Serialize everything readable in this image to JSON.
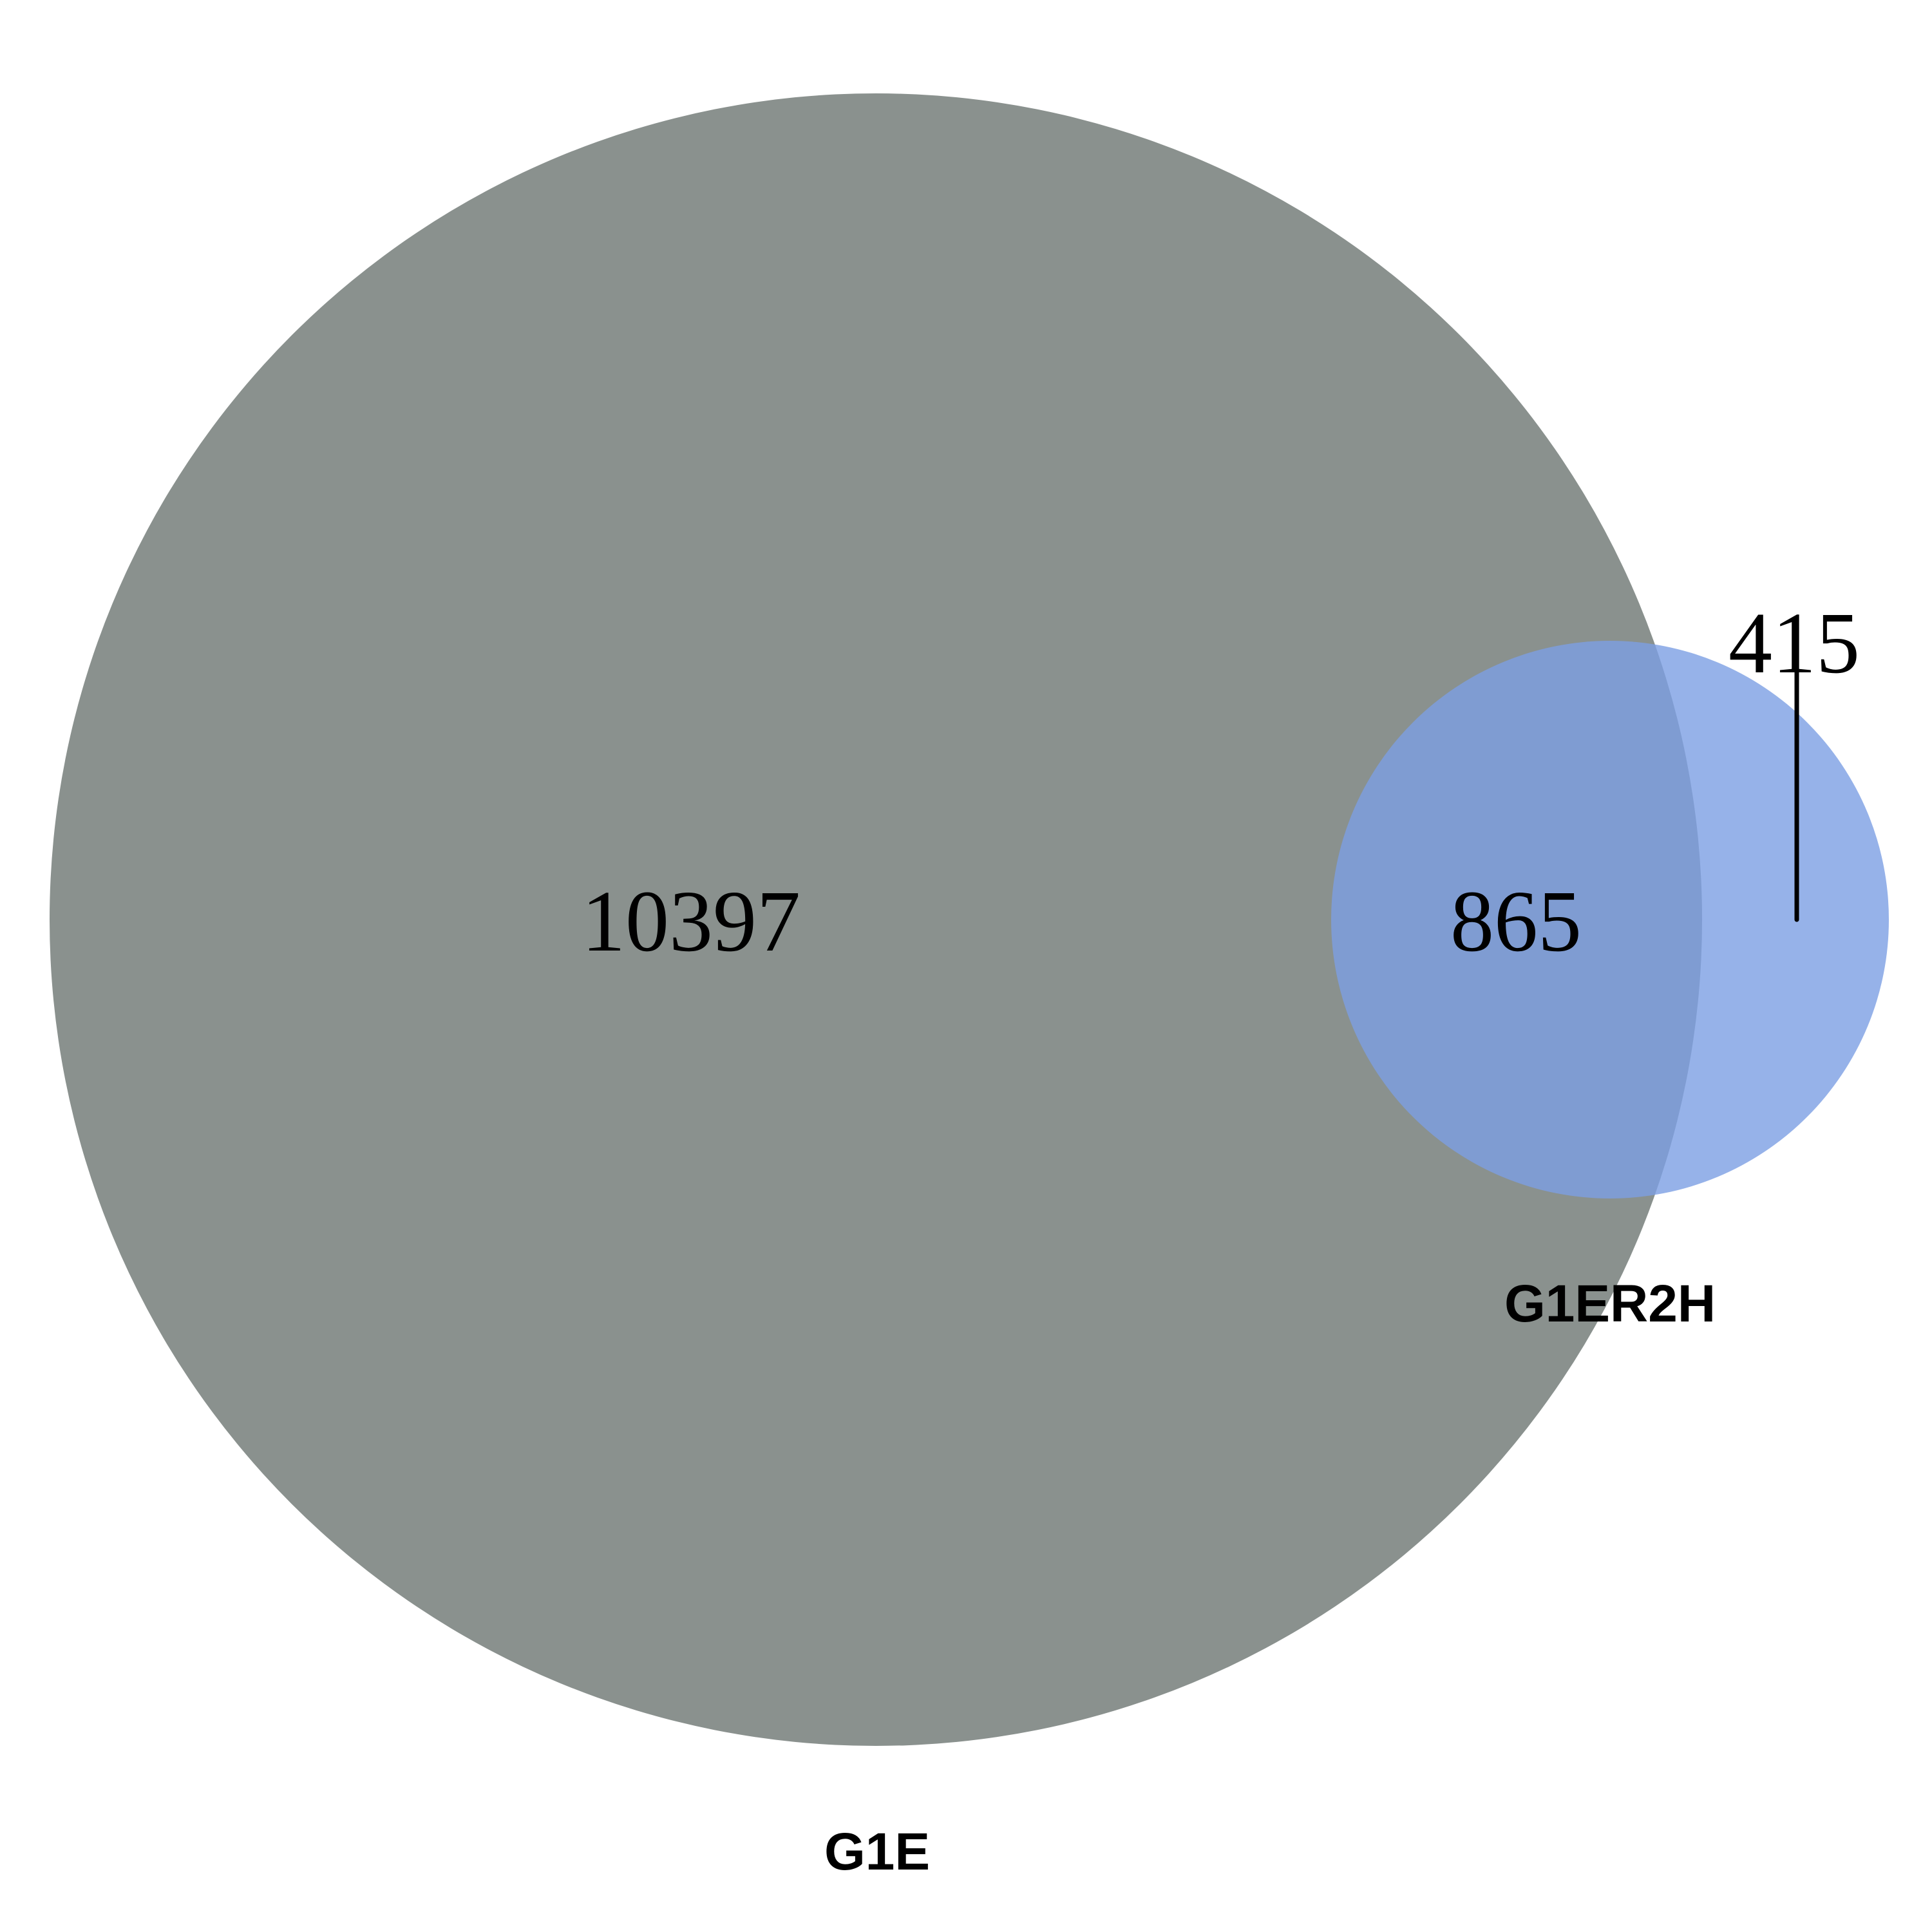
{
  "chart_data": {
    "type": "venn",
    "sets": [
      {
        "name": "G1E",
        "color": "#8a918e",
        "opacity": 1.0
      },
      {
        "name": "G1ER2H",
        "color": "#7c9fe3",
        "opacity": 0.8
      }
    ],
    "regions": {
      "G1E_only": "10397",
      "intersection": "865",
      "G1ER2H_only": "415"
    }
  }
}
